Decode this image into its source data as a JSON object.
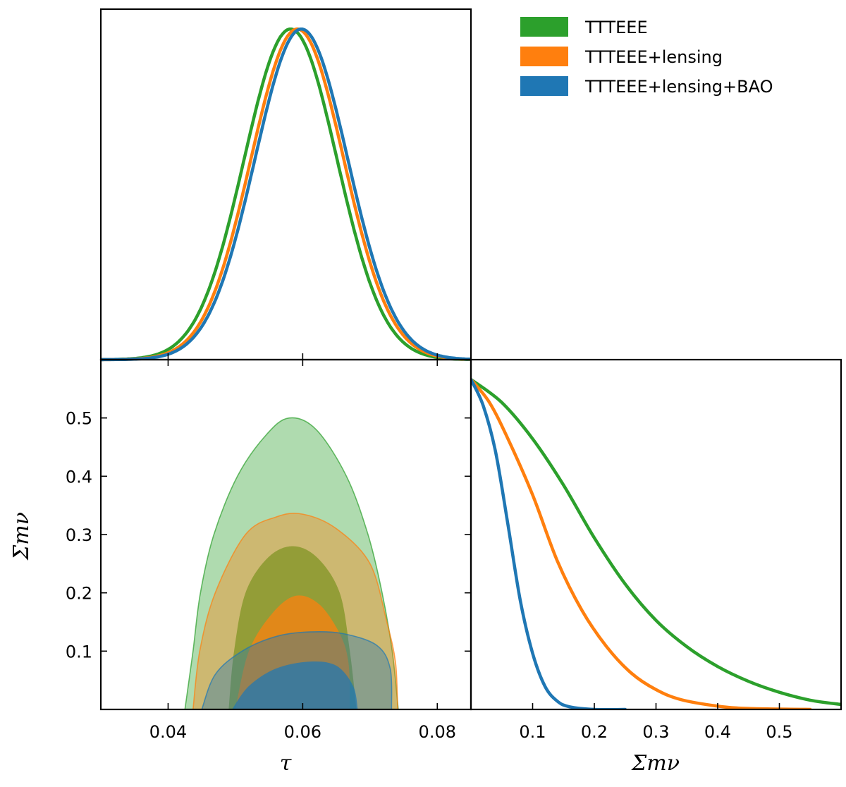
{
  "chart_data": [
    {
      "type": "line",
      "panel": "tau-marginal",
      "xlabel": "",
      "ylabel": "",
      "xlim": [
        0.03,
        0.085
      ],
      "ylim": [
        0,
        1.06
      ],
      "xticks": [
        0.04,
        0.06,
        0.08
      ],
      "series": [
        {
          "name": "TTTEEE",
          "color": "#2ca02c",
          "mean": 0.0582,
          "sigma": 0.0069
        },
        {
          "name": "TTTEEE+lensing",
          "color": "#ff7f0e",
          "mean": 0.0592,
          "sigma": 0.0069
        },
        {
          "name": "TTTEEE+lensing+BAO",
          "color": "#1f77b4",
          "mean": 0.0598,
          "sigma": 0.0069
        }
      ]
    },
    {
      "type": "area",
      "panel": "tau-vs-summnu",
      "xlabel": "τ",
      "ylabel": "Σmν",
      "xlim": [
        0.03,
        0.085
      ],
      "ylim": [
        0.0,
        0.6
      ],
      "xticks": [
        "0.04",
        "0.06",
        "0.08"
      ],
      "yticks": [
        "0.1",
        "0.2",
        "0.3",
        "0.4",
        "0.5"
      ],
      "series": [
        {
          "name": "TTTEEE",
          "color": "#2ca02c",
          "contour_95": [
            [
              0.0425,
              0.0
            ],
            [
              0.0437,
              0.1
            ],
            [
              0.0448,
              0.2
            ],
            [
              0.0468,
              0.3
            ],
            [
              0.0503,
              0.4
            ],
            [
              0.0545,
              0.47
            ],
            [
              0.058,
              0.5
            ],
            [
              0.062,
              0.48
            ],
            [
              0.0665,
              0.4
            ],
            [
              0.0697,
              0.3
            ],
            [
              0.0718,
              0.2
            ],
            [
              0.0733,
              0.1
            ],
            [
              0.0742,
              0.0
            ]
          ],
          "contour_68": [
            [
              0.049,
              0.0
            ],
            [
              0.0498,
              0.1
            ],
            [
              0.0515,
              0.2
            ],
            [
              0.0548,
              0.26
            ],
            [
              0.0585,
              0.28
            ],
            [
              0.0622,
              0.26
            ],
            [
              0.0655,
              0.2
            ],
            [
              0.067,
              0.1
            ],
            [
              0.068,
              0.0
            ]
          ]
        },
        {
          "name": "TTTEEE+lensing",
          "color": "#ff7f0e",
          "contour_95": [
            [
              0.0437,
              0.0
            ],
            [
              0.0447,
              0.1
            ],
            [
              0.047,
              0.2
            ],
            [
              0.0515,
              0.3
            ],
            [
              0.056,
              0.33
            ],
            [
              0.06,
              0.335
            ],
            [
              0.065,
              0.31
            ],
            [
              0.07,
              0.25
            ],
            [
              0.0725,
              0.15
            ],
            [
              0.0738,
              0.08
            ],
            [
              0.0741,
              0.0
            ]
          ],
          "contour_68": [
            [
              0.05,
              0.0
            ],
            [
              0.052,
              0.1
            ],
            [
              0.0555,
              0.165
            ],
            [
              0.059,
              0.195
            ],
            [
              0.0625,
              0.18
            ],
            [
              0.0655,
              0.13
            ],
            [
              0.0668,
              0.08
            ],
            [
              0.067,
              0.0
            ]
          ]
        },
        {
          "name": "TTTEEE+lensing+BAO",
          "color": "#1f77b4",
          "contour_95": [
            [
              0.045,
              0.0
            ],
            [
              0.047,
              0.06
            ],
            [
              0.051,
              0.1
            ],
            [
              0.056,
              0.125
            ],
            [
              0.061,
              0.133
            ],
            [
              0.066,
              0.13
            ],
            [
              0.071,
              0.11
            ],
            [
              0.073,
              0.07
            ],
            [
              0.0732,
              0.0
            ]
          ],
          "contour_68": [
            [
              0.0495,
              0.0
            ],
            [
              0.052,
              0.04
            ],
            [
              0.056,
              0.07
            ],
            [
              0.061,
              0.082
            ],
            [
              0.065,
              0.075
            ],
            [
              0.0675,
              0.04
            ],
            [
              0.0682,
              0.0
            ]
          ]
        }
      ]
    },
    {
      "type": "line",
      "panel": "summnu-marginal",
      "xlabel": "Σmν",
      "ylabel": "",
      "xlim": [
        0.0,
        0.6
      ],
      "ylim": [
        0,
        1.06
      ],
      "xticks": [
        "0.1",
        "0.2",
        "0.3",
        "0.4",
        "0.5"
      ],
      "series": [
        {
          "name": "TTTEEE",
          "color": "#2ca02c",
          "points": [
            [
              0,
              1.0
            ],
            [
              0.05,
              0.93
            ],
            [
              0.1,
              0.82
            ],
            [
              0.15,
              0.68
            ],
            [
              0.2,
              0.52
            ],
            [
              0.25,
              0.38
            ],
            [
              0.3,
              0.27
            ],
            [
              0.35,
              0.19
            ],
            [
              0.4,
              0.13
            ],
            [
              0.45,
              0.085
            ],
            [
              0.5,
              0.052
            ],
            [
              0.55,
              0.028
            ],
            [
              0.6,
              0.015
            ]
          ]
        },
        {
          "name": "TTTEEE+lensing",
          "color": "#ff7f0e",
          "points": [
            [
              0,
              1.0
            ],
            [
              0.03,
              0.93
            ],
            [
              0.06,
              0.82
            ],
            [
              0.1,
              0.65
            ],
            [
              0.14,
              0.45
            ],
            [
              0.18,
              0.3
            ],
            [
              0.22,
              0.19
            ],
            [
              0.26,
              0.11
            ],
            [
              0.3,
              0.06
            ],
            [
              0.34,
              0.03
            ],
            [
              0.4,
              0.01
            ],
            [
              0.45,
              0.003
            ],
            [
              0.55,
              0.0
            ]
          ]
        },
        {
          "name": "TTTEEE+lensing+BAO",
          "color": "#1f77b4",
          "points": [
            [
              0,
              1.0
            ],
            [
              0.02,
              0.92
            ],
            [
              0.04,
              0.78
            ],
            [
              0.06,
              0.56
            ],
            [
              0.08,
              0.33
            ],
            [
              0.1,
              0.17
            ],
            [
              0.12,
              0.07
            ],
            [
              0.14,
              0.025
            ],
            [
              0.16,
              0.008
            ],
            [
              0.2,
              0.0
            ],
            [
              0.25,
              0.0
            ]
          ]
        }
      ]
    }
  ],
  "legend": {
    "placement": "top-right",
    "entries": [
      {
        "label": "TTTEEE",
        "color": "#2ca02c"
      },
      {
        "label": "TTTEEE+lensing",
        "color": "#ff7f0e"
      },
      {
        "label": "TTTEEE+lensing+BAO",
        "color": "#1f77b4"
      }
    ]
  }
}
